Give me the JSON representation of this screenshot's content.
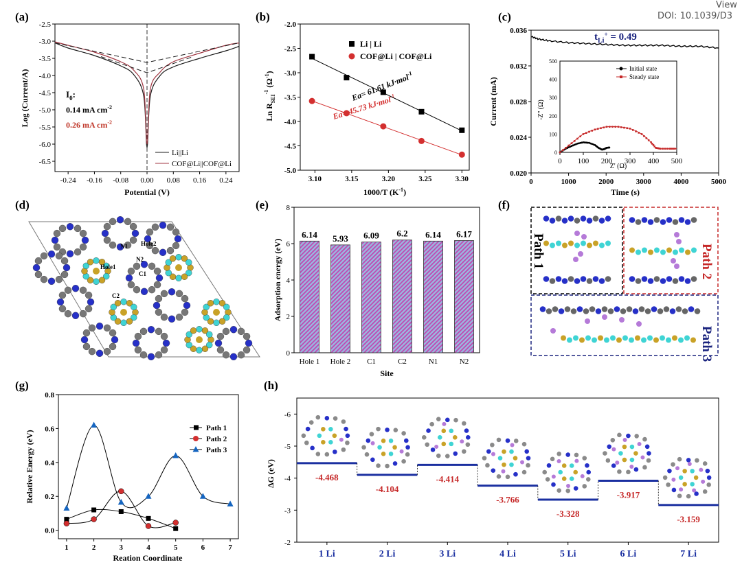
{
  "header": {
    "view": "View",
    "doi": "DOI: 10.1039/D3"
  },
  "panels": {
    "a": "(a)",
    "b": "(b)",
    "c": "(c)",
    "d": "(d)",
    "e": "(e)",
    "f": "(f)",
    "g": "(g)",
    "h": "(h)"
  },
  "panel_a": {
    "xlabel": "Potential (V)",
    "ylabel": "Log (Current/A)",
    "xticks": [
      "-0.24",
      "-0.16",
      "-0.08",
      "0.00",
      "0.08",
      "0.16",
      "0.24"
    ],
    "yticks": [
      "-2.5",
      "-3.0",
      "-3.5",
      "-4.0",
      "-4.5",
      "-5.0",
      "-5.5",
      "-6.0",
      "-6.5"
    ],
    "i0_label": "I",
    "i0_sub": "0",
    "val1": "0.14 mA cm",
    "val2": "0.26 mA cm",
    "sup": "-2",
    "legend": [
      "Li||Li",
      "COF@Li||COF@Li"
    ],
    "colors": {
      "s1": "#1a1a1a",
      "s2": "#a03540",
      "val2": "#c0392b"
    }
  },
  "panel_b": {
    "xlabel": "1000/T (K",
    "xlabel_sup": "-1",
    "xlabel_end": ")",
    "ylabel": "Ln R",
    "ylabel_sub": "SEI",
    "ylabel_sup": "-1",
    "ylabel_unit": " (Ω",
    "ylabel_unit_sup": "-1",
    "ylabel_end": ")",
    "xticks": [
      "3.10",
      "3.15",
      "3.20",
      "3.25",
      "3.30"
    ],
    "yticks": [
      "-2.0",
      "-2.5",
      "-3.0",
      "-3.5",
      "-4.0",
      "-4.5",
      "-5.0"
    ],
    "legend": [
      "Li | Li",
      "COF@Li | COF@Li"
    ],
    "ea1": "Ea= 61.61 kJ·mol",
    "ea2": "Ea= 45.73 kJ·mol",
    "ea_sup": "-1",
    "colors": {
      "s1": "#000000",
      "s2": "#d32f2f"
    }
  },
  "panel_c": {
    "xlabel": "Time (s)",
    "ylabel": "Current (mA)",
    "xticks": [
      "0",
      "1000",
      "2000",
      "3000",
      "4000",
      "5000"
    ],
    "yticks": [
      "0.036",
      "0.032",
      "0.028",
      "0.024",
      "0.020"
    ],
    "t_label": "t",
    "t_sub": "Li",
    "t_sup": "+",
    "t_value": " = 0.49",
    "inset": {
      "xlabel": "Z' (Ω)",
      "ylabel": "-Z'' (Ω)",
      "xticks": [
        "0",
        "100",
        "200",
        "300",
        "400",
        "500"
      ],
      "yticks": [
        "0",
        "100",
        "200",
        "300",
        "400",
        "500"
      ],
      "legend": [
        "Initial state",
        "Steady state"
      ]
    },
    "colors": {
      "title": "#1a237e",
      "initial": "#000000",
      "steady": "#c62828"
    }
  },
  "panel_d": {
    "labels": [
      "N1",
      "Hole2",
      "N2",
      "Hole1",
      "C1",
      "C2"
    ]
  },
  "panel_e": {
    "xlabel": "Site",
    "ylabel": "Adsorption energy (eV)",
    "yticks": [
      "0",
      "2",
      "4",
      "6",
      "8"
    ],
    "colors": {
      "bar": "#9bb5e0",
      "hatch": "#c04ab0"
    }
  },
  "panel_f": {
    "path1": "Path 1",
    "path2": "Path 2",
    "path3": "Path 3",
    "colors": {
      "p1": "#000000",
      "p2": "#c62828",
      "p3": "#1a237e"
    }
  },
  "panel_g": {
    "xlabel": "Reation Coordinate",
    "ylabel": "Relative Energy (eV)",
    "xticks": [
      "1",
      "2",
      "3",
      "4",
      "5",
      "6",
      "7"
    ],
    "yticks": [
      "0.8",
      "0.6",
      "0.4",
      "0.2",
      "0.0"
    ],
    "colors": {
      "p1": "#000000",
      "p2": "#d32f2f",
      "p3": "#1565c0"
    }
  },
  "panel_h": {
    "ylabel": "ΔG (eV)",
    "yticks": [
      "-6",
      "-5",
      "-4",
      "-3",
      "-2"
    ],
    "colors": {
      "level": "#1a2fa0",
      "label": "#c62828",
      "cat": "#1a2fa0"
    }
  },
  "chart_data": [
    {
      "id": "a",
      "type": "line",
      "xlim": [
        -0.28,
        0.28
      ],
      "ylim": [
        -6.8,
        -2.5
      ],
      "series": [
        {
          "name": "Li||Li",
          "x": [
            -0.28,
            -0.24,
            -0.16,
            -0.08,
            -0.04,
            -0.01,
            0.0,
            0.01,
            0.04,
            0.08,
            0.16,
            0.24,
            0.28
          ],
          "y": [
            -3.05,
            -3.2,
            -3.42,
            -3.72,
            -3.98,
            -4.6,
            -6.1,
            -4.6,
            -4.0,
            -3.75,
            -3.5,
            -3.28,
            -3.15
          ]
        },
        {
          "name": "COF@Li||COF@Li",
          "x": [
            -0.28,
            -0.24,
            -0.16,
            -0.08,
            -0.04,
            -0.01,
            0.0,
            0.01,
            0.04,
            0.08,
            0.16,
            0.24,
            0.28
          ],
          "y": [
            -3.02,
            -3.12,
            -3.32,
            -3.6,
            -3.85,
            -4.4,
            -6.0,
            -4.4,
            -3.9,
            -3.6,
            -3.35,
            -3.12,
            -3.05
          ]
        }
      ],
      "annotation": "I0: 0.14 mA cm-2, 0.26 mA cm-2"
    },
    {
      "id": "b",
      "type": "scatter",
      "xlim": [
        3.08,
        3.31
      ],
      "ylim": [
        -5.0,
        -2.0
      ],
      "series": [
        {
          "name": "Li | Li",
          "x": [
            3.096,
            3.143,
            3.193,
            3.245,
            3.3
          ],
          "y": [
            -2.67,
            -3.1,
            -3.4,
            -3.8,
            -4.18
          ]
        },
        {
          "name": "COF@Li | COF@Li",
          "x": [
            3.096,
            3.143,
            3.193,
            3.245,
            3.3
          ],
          "y": [
            -3.58,
            -3.83,
            -4.1,
            -4.4,
            -4.68
          ]
        }
      ],
      "annotations": [
        "Ea= 61.61 kJ·mol-1",
        "Ea= 45.73 kJ·mol-1"
      ]
    },
    {
      "id": "c",
      "type": "line",
      "xlim": [
        0,
        5000
      ],
      "ylim": [
        0.02,
        0.036
      ],
      "series": [
        {
          "name": "Current",
          "x": [
            0,
            200,
            500,
            1000,
            1500,
            2000,
            2500,
            3000,
            3500,
            4000,
            4500,
            5000
          ],
          "y": [
            0.0353,
            0.035,
            0.0348,
            0.0346,
            0.0345,
            0.0344,
            0.0343,
            0.0343,
            0.0343,
            0.0342,
            0.0342,
            0.034
          ]
        }
      ],
      "inset": {
        "type": "scatter",
        "xlim": [
          0,
          500
        ],
        "ylim": [
          0,
          500
        ],
        "series": [
          {
            "name": "Initial state",
            "x": [
              0,
              25,
              50,
              75,
              100,
              125,
              150,
              165,
              180,
              190,
              200,
              215
            ],
            "y": [
              0,
              20,
              35,
              48,
              55,
              52,
              40,
              25,
              15,
              18,
              25,
              27
            ]
          },
          {
            "name": "Steady state",
            "x": [
              0,
              50,
              100,
              150,
              200,
              250,
              300,
              350,
              390,
              410,
              430,
              470,
              500
            ],
            "y": [
              0,
              50,
              100,
              125,
              140,
              140,
              130,
              100,
              55,
              25,
              20,
              20,
              20
            ]
          }
        ]
      }
    },
    {
      "id": "e",
      "type": "bar",
      "categories": [
        "Hole 1",
        "Hole 2",
        "C1",
        "C2",
        "N1",
        "N2"
      ],
      "values": [
        6.14,
        5.93,
        6.09,
        6.2,
        6.14,
        6.17
      ],
      "ylim": [
        0,
        8
      ]
    },
    {
      "id": "g",
      "type": "line",
      "xlim": [
        0.7,
        7.3
      ],
      "ylim": [
        -0.05,
        0.8
      ],
      "series": [
        {
          "name": "Path 1",
          "x": [
            1,
            2,
            3,
            4,
            5
          ],
          "y": [
            0.065,
            0.12,
            0.11,
            0.07,
            0.01
          ]
        },
        {
          "name": "Path 2",
          "x": [
            1,
            2,
            3,
            4,
            5
          ],
          "y": [
            0.04,
            0.065,
            0.23,
            0.025,
            0.045
          ]
        },
        {
          "name": "Path 3",
          "x": [
            1,
            2,
            3,
            4,
            5,
            6,
            7
          ],
          "y": [
            0.13,
            0.62,
            0.165,
            0.2,
            0.44,
            0.2,
            0.155
          ]
        }
      ]
    },
    {
      "id": "h",
      "type": "bar",
      "categories": [
        "1 Li",
        "2 Li",
        "3 Li",
        "4 Li",
        "5 Li",
        "6 Li",
        "7 Li"
      ],
      "values": [
        -4.468,
        -4.104,
        -4.414,
        -3.766,
        -3.328,
        -3.917,
        -3.159
      ],
      "ylim": [
        -6.5,
        -2
      ]
    }
  ]
}
